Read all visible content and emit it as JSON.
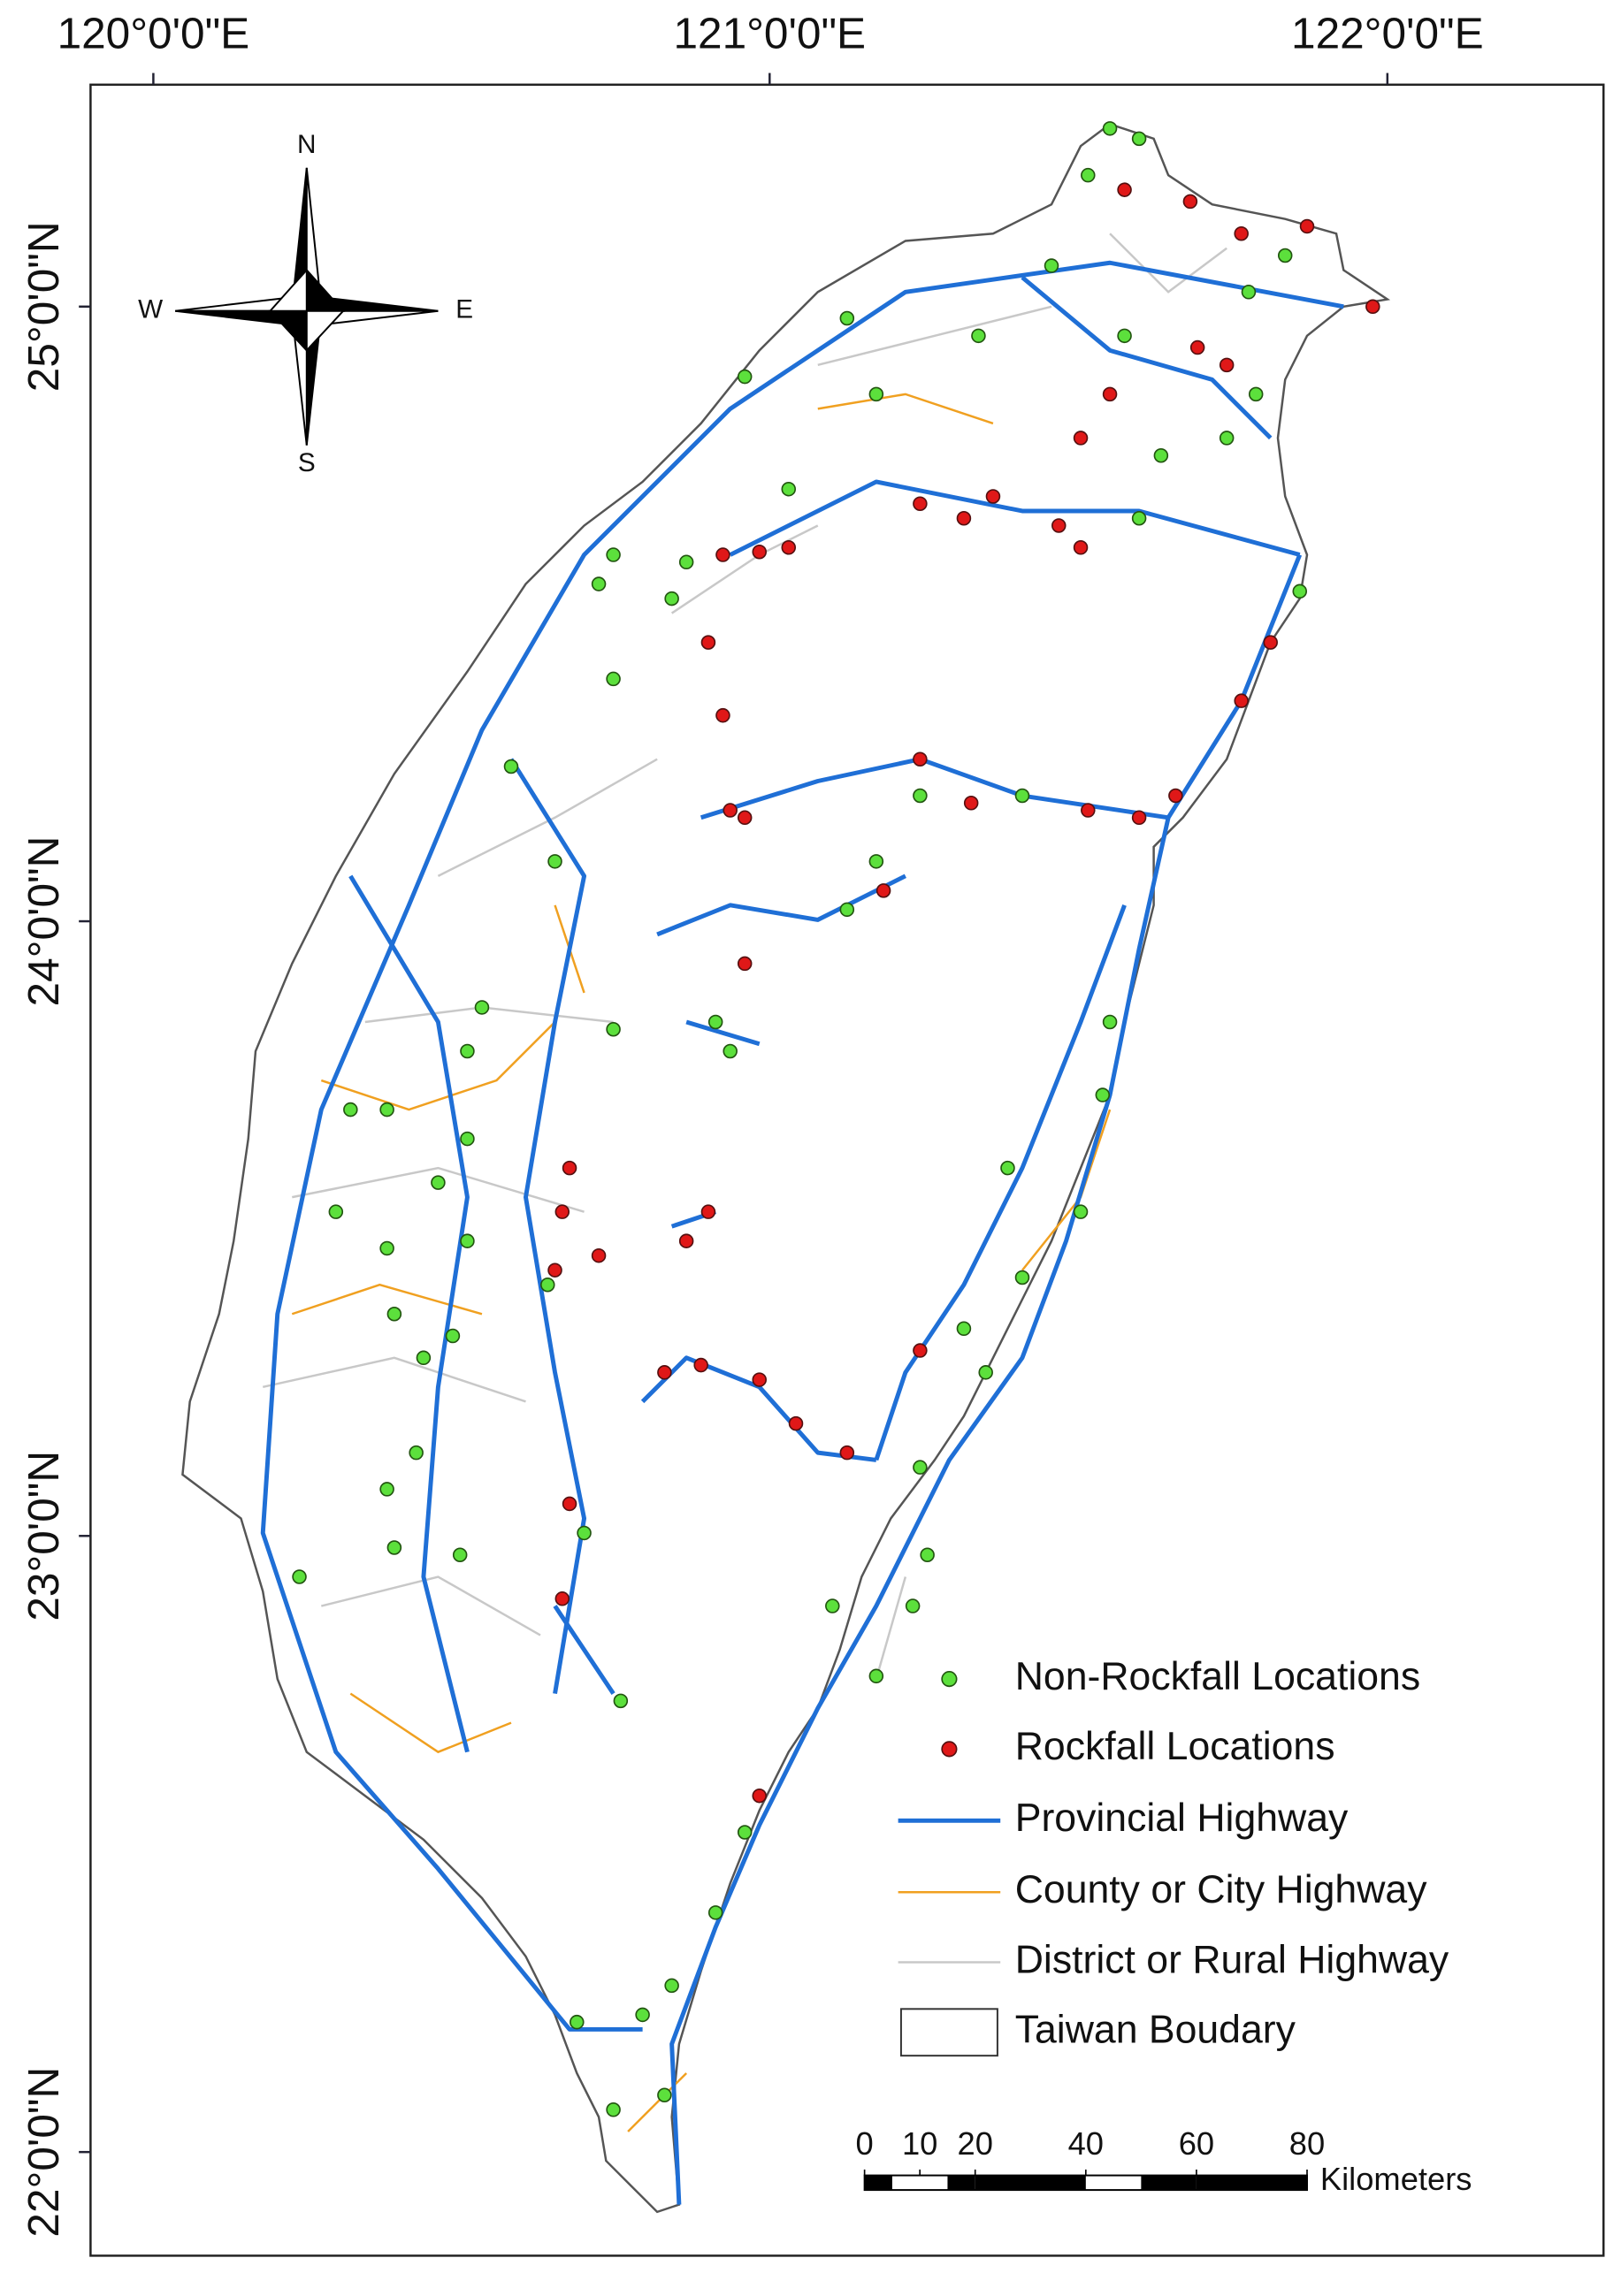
{
  "graticule": {
    "longitude_labels": [
      "120°0'0\"E",
      "121°0'0\"E",
      "122°0'0\"E"
    ],
    "latitude_labels": [
      "25°0'0\"N",
      "24°0'0\"N",
      "23°0'0\"N",
      "22°0'0\"N"
    ]
  },
  "compass": {
    "north": "N",
    "east": "E",
    "south": "S",
    "west": "W"
  },
  "legend": {
    "items": [
      "Non-Rockfall Locations",
      "Rockfall Locations",
      "Provincial Highway",
      "County or City Highway",
      "District or Rural Highway",
      "Taiwan Boudary"
    ]
  },
  "scale_bar": {
    "ticks": [
      0,
      10,
      20,
      40,
      60,
      80
    ],
    "unit": "Kilometers"
  }
}
